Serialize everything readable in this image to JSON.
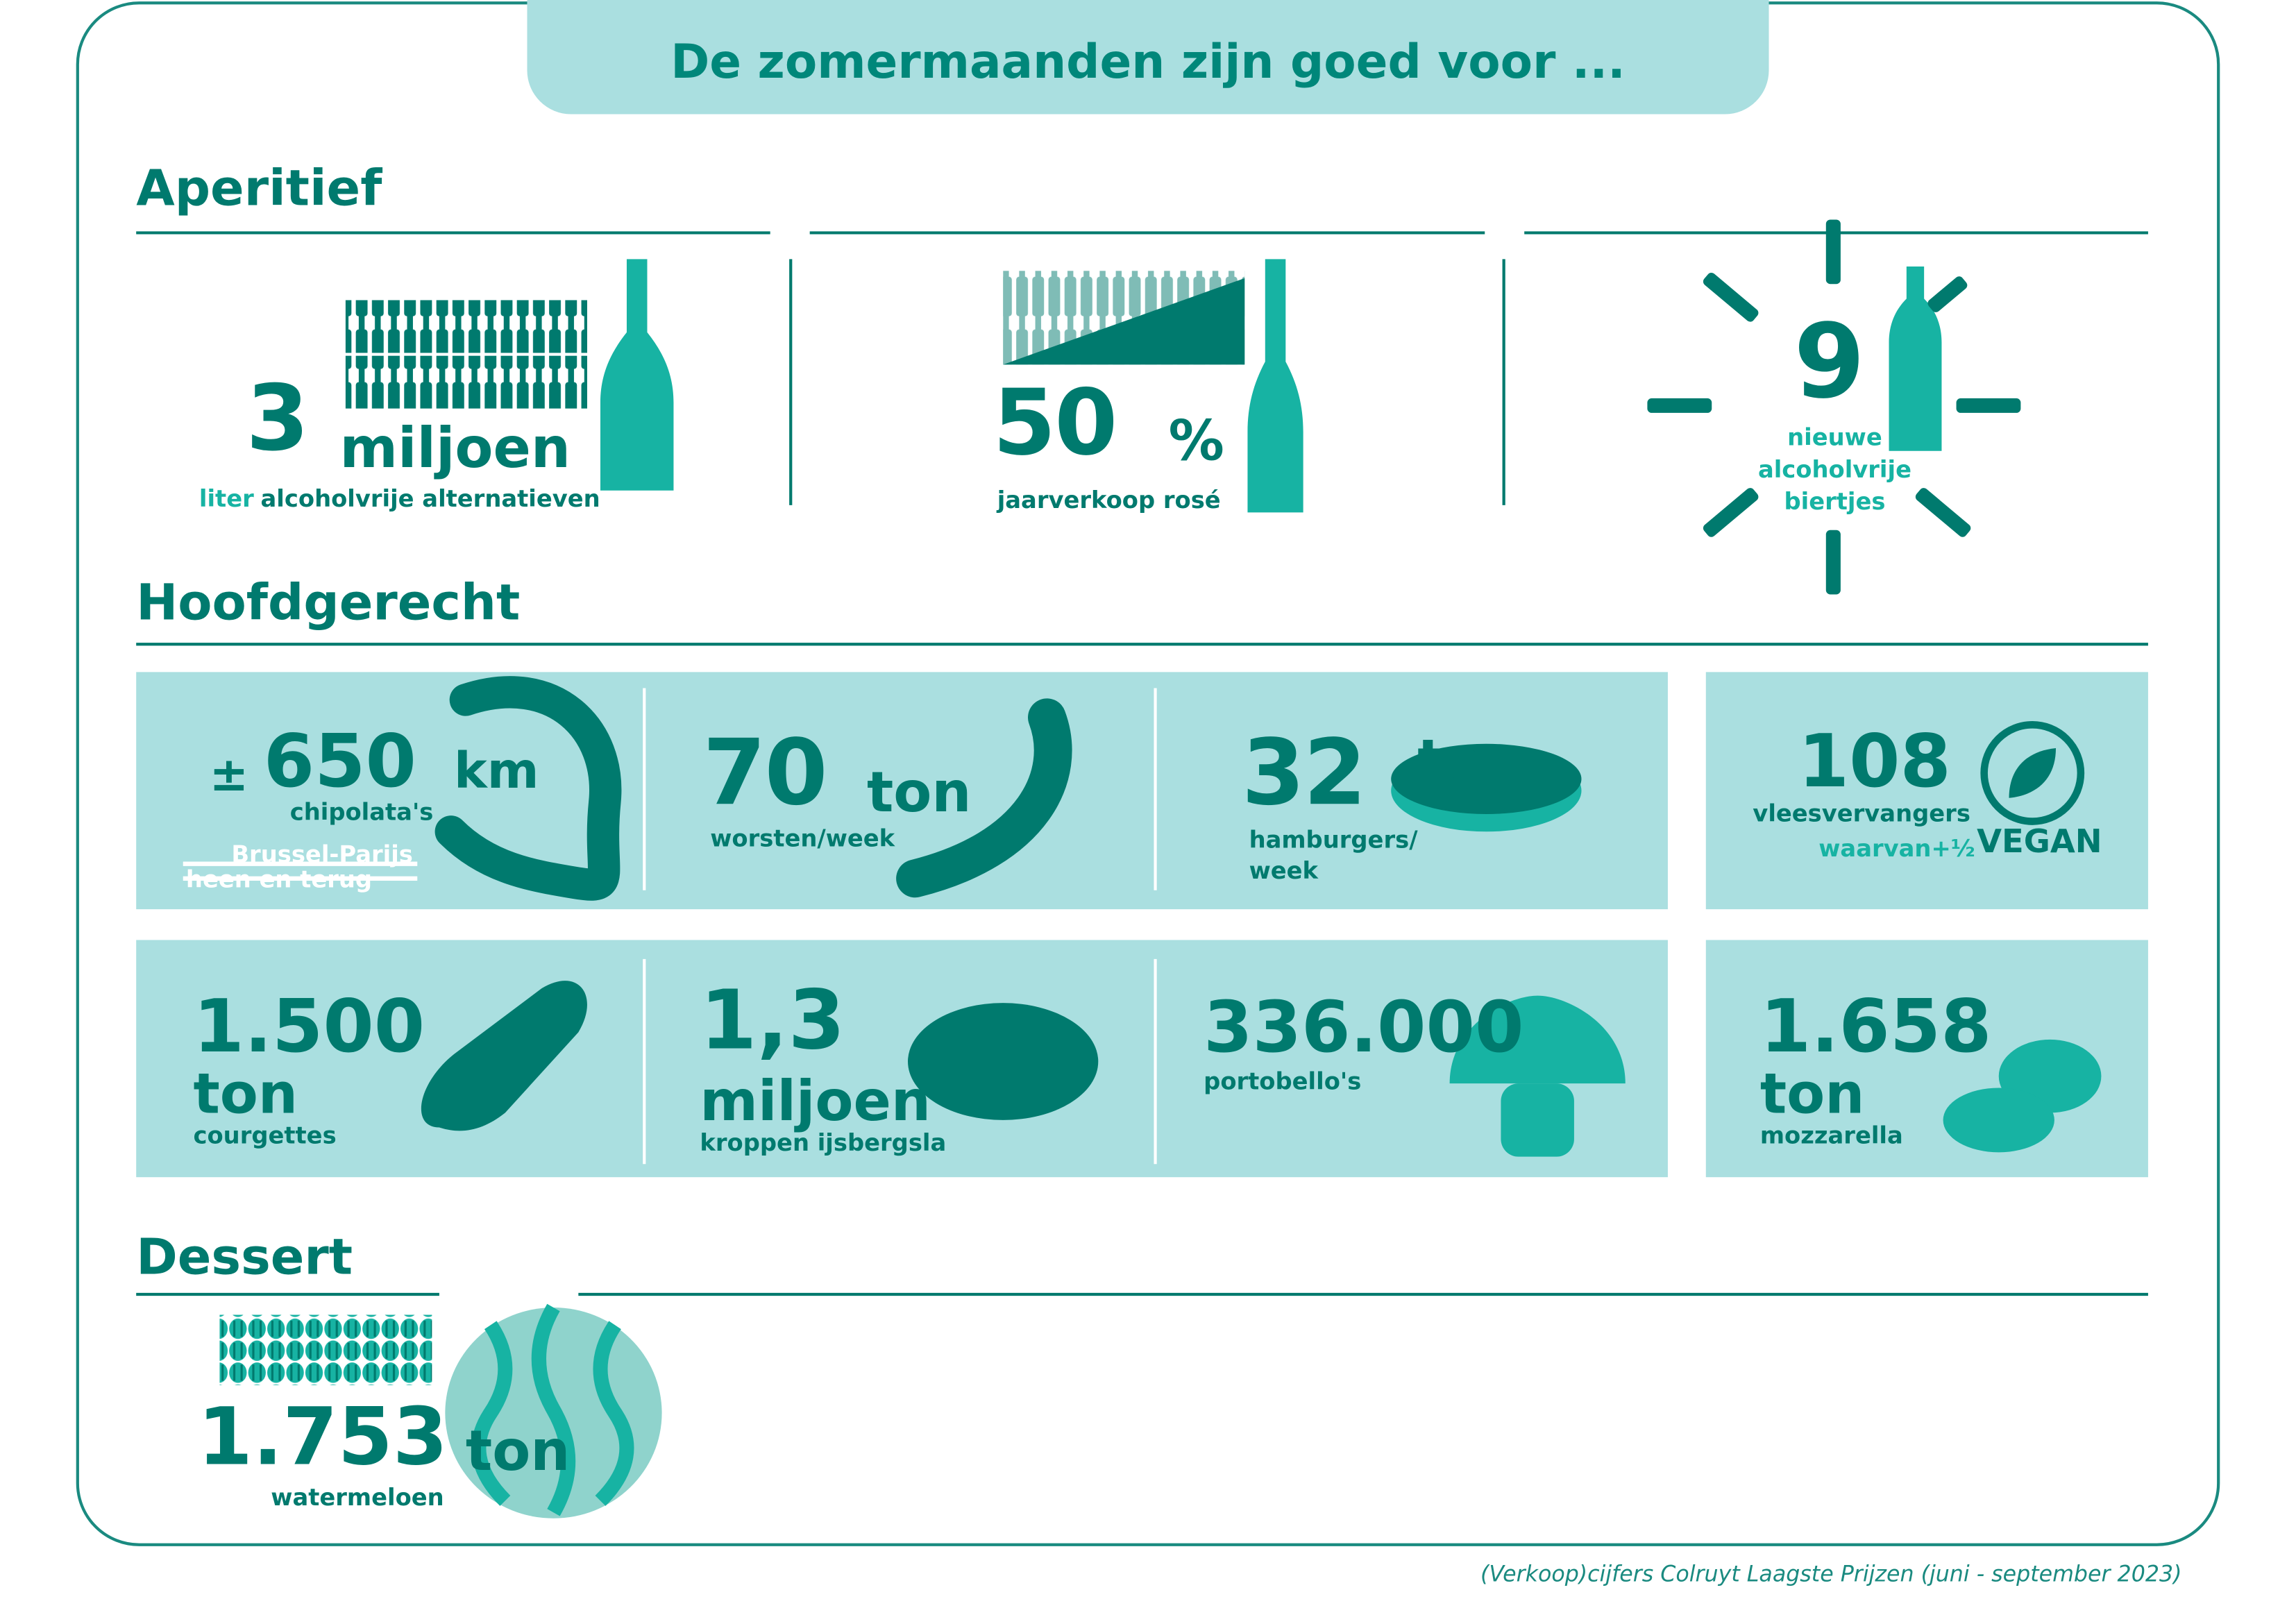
{
  "title": "De zomermaanden zijn goed voor ...",
  "aperitief": {
    "heading": "Aperitief",
    "items": [
      {
        "number": "3",
        "unit": "miljoen",
        "label_prefix": "liter",
        "label": "alcoholvrije alternatieven"
      },
      {
        "number": "50",
        "unit": "%",
        "label": "jaarverkoop rosé"
      },
      {
        "number": "9",
        "label": [
          "nieuwe",
          "alcoholvrije",
          "biertjes"
        ]
      }
    ]
  },
  "hoofdgerecht": {
    "heading": "Hoofdgerecht",
    "items": [
      {
        "prefix": "±",
        "number": "650",
        "unit": "km",
        "label": "chipolata's",
        "note": [
          "Brussel-Parijs",
          "heen en terug"
        ]
      },
      {
        "number": "70",
        "unit": "ton",
        "label": "worsten/week"
      },
      {
        "number": "32",
        "unit": "ton",
        "label": [
          "hamburgers/",
          "week"
        ]
      },
      {
        "number": "108",
        "label": "vleesvervangers",
        "note": "waarvan+½",
        "badge": "VEGAN"
      },
      {
        "number": "1.500",
        "unit": "ton",
        "label": "courgettes"
      },
      {
        "number": "1,3",
        "unit": "miljoen",
        "label": "kroppen ijsbergsla"
      },
      {
        "number": "336.000",
        "label": "portobello's"
      },
      {
        "number": "1.658",
        "unit": "ton",
        "label": "mozzarella"
      }
    ]
  },
  "dessert": {
    "heading": "Dessert",
    "items": [
      {
        "number": "1.753",
        "unit": "ton",
        "label": "watermeloen"
      }
    ]
  },
  "footer": "(Verkoop)cijfers Colruyt Laagste Prijzen (juni - september 2023)"
}
